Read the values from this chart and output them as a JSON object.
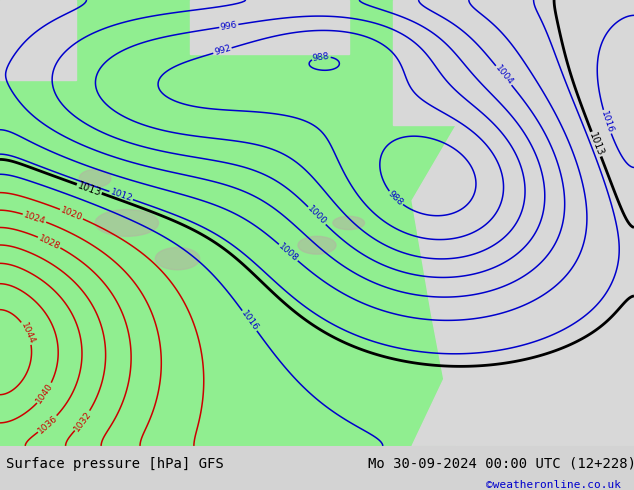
{
  "title_left": "Surface pressure [hPa] GFS",
  "title_right": "Mo 30-09-2024 00:00 UTC (12+228)",
  "credit": "©weatheronline.co.uk",
  "bg_color": "#d3d3d3",
  "land_color": "#90ee90",
  "sea_color": "#d8d8d8",
  "blue_contour_color": "#0000cc",
  "red_contour_color": "#cc0000",
  "black_contour_color": "#000000",
  "bottom_bar_color": "#ffffff",
  "bottom_text_color": "#000000",
  "credit_color": "#0000cc",
  "font_size_bottom": 10,
  "font_size_labels": 7
}
